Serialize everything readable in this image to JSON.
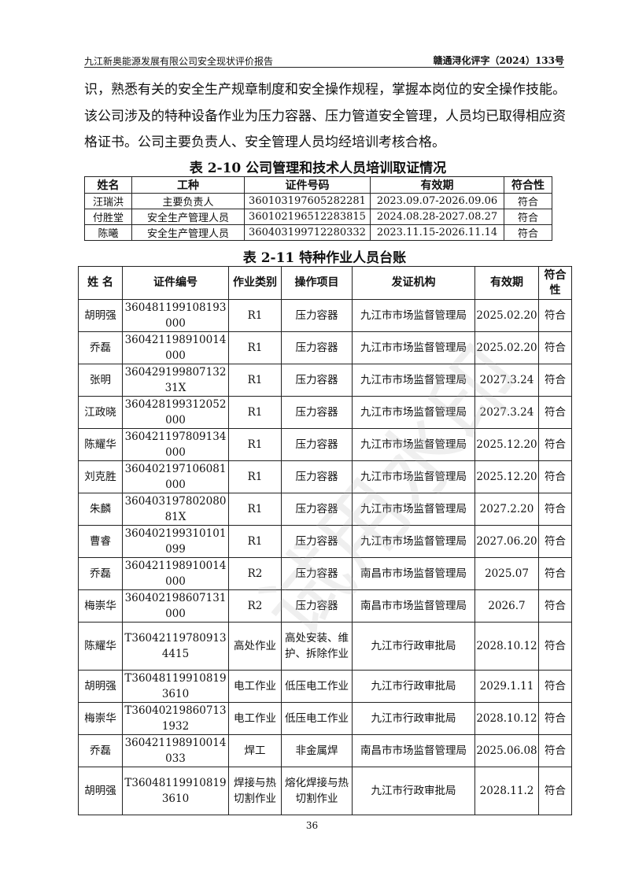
{
  "header": {
    "left": "九江新奥能源发展有限公司安全现状评价报告",
    "right": "赣通浔化评字（2024）133号"
  },
  "paragraph": "识，熟悉有关的安全生产规章制度和安全操作规程，掌握本岗位的安全操作技能。该公司涉及的特种设备作业为压力容器、压力管道安全管理，人员均已取得相应资格证书。公司主要负责人、安全管理人员均经培训考核合格。",
  "table1": {
    "caption": "表 2-10  公司管理和技术人员培训取证情况",
    "headers": [
      "姓名",
      "工种",
      "证件号码",
      "有效期",
      "符合性"
    ],
    "rows": [
      [
        "汪瑞洪",
        "主要负责人",
        "360103197605282281",
        "2023.09.07-2026.09.06",
        "符合"
      ],
      [
        "付胜堂",
        "安全生产管理人员",
        "360102196512283815",
        "2024.08.28-2027.08.27",
        "符合"
      ],
      [
        "陈曦",
        "安全生产管理人员",
        "360403199712280332",
        "2023.11.15-2026.11.14",
        "符合"
      ]
    ]
  },
  "table2": {
    "caption": "表 2-11   特种作业人员台账",
    "headers": [
      "姓 名",
      "证件编号",
      "作业类别",
      "操作项目",
      "发证机构",
      "有效期",
      "符合性"
    ],
    "rows": [
      [
        "胡明强",
        "360481199108193000",
        "R1",
        "压力容器",
        "九江市市场监督管理局",
        "2025.02.20",
        "符合"
      ],
      [
        "乔磊",
        "360421198910014000",
        "R1",
        "压力容器",
        "九江市市场监督管理局",
        "2025.02.20",
        "符合"
      ],
      [
        "张明",
        "36042919980713231X",
        "R1",
        "压力容器",
        "九江市市场监督管理局",
        "2027.3.24",
        "符合"
      ],
      [
        "江政晓",
        "360428199312052000",
        "R1",
        "压力容器",
        "九江市市场监督管理局",
        "2027.3.24",
        "符合"
      ],
      [
        "陈耀华",
        "360421197809134000",
        "R1",
        "压力容器",
        "九江市市场监督管理局",
        "2025.12.20",
        "符合"
      ],
      [
        "刘克胜",
        "360402197106081000",
        "R1",
        "压力容器",
        "九江市市场监督管理局",
        "2025.12.20",
        "符合"
      ],
      [
        "朱麟",
        "36040319780208081X",
        "R1",
        "压力容器",
        "九江市市场监督管理局",
        "2027.2.20",
        "符合"
      ],
      [
        "曹睿",
        "360402199310101099",
        "R1",
        "压力容器",
        "九江市市场监督管理局",
        "2027.06.20",
        "符合"
      ],
      [
        "乔磊",
        "360421198910014000",
        "R2",
        "压力容器",
        "南昌市市场监督管理局",
        "2025.07",
        "符合"
      ],
      [
        "梅崇华",
        "360402198607131000",
        "R2",
        "压力容器",
        "南昌市市场监督管理局",
        "2026.7",
        "符合"
      ],
      [
        "陈耀华",
        "T360421197809134415",
        "高处作业",
        "高处安装、维护、拆除作业",
        "九江市行政审批局",
        "2028.10.12",
        "符合"
      ],
      [
        "胡明强",
        "T360481199108193610",
        "电工作业",
        "低压电工作业",
        "九江市行政审批局",
        "2029.1.11",
        "符合"
      ],
      [
        "梅崇华",
        "T360402198607131932",
        "电工作业",
        "低压电工作业",
        "九江市行政审批局",
        "2028.10.12",
        "符合"
      ],
      [
        "乔磊",
        "360421198910014033",
        "焊工",
        "非金属焊",
        "南昌市市场监督管理局",
        "2025.06.08",
        "符合"
      ],
      [
        "胡明强",
        "T360481199108193610",
        "焊接与热切割作业",
        "熔化焊接与热切割作业",
        "九江市行政审批局",
        "2028.11.2",
        "符合"
      ]
    ]
  },
  "page_number": "36",
  "watermark": "试用水印"
}
